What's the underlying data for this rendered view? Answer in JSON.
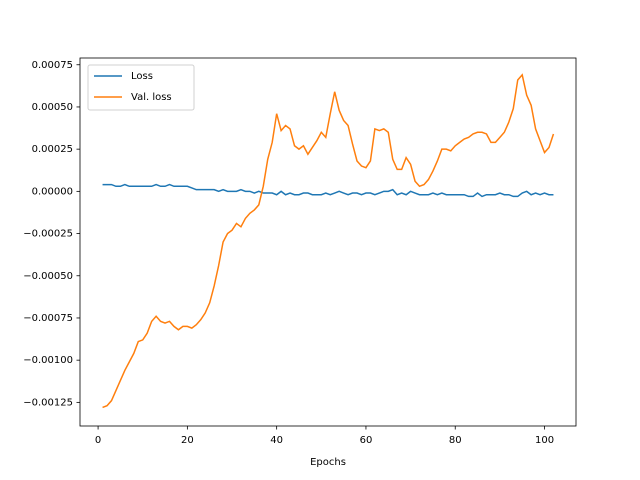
{
  "chart_data": {
    "type": "line",
    "x_label": "Epochs",
    "x": [
      1,
      2,
      3,
      4,
      5,
      6,
      7,
      8,
      9,
      10,
      11,
      12,
      13,
      14,
      15,
      16,
      17,
      18,
      19,
      20,
      21,
      22,
      23,
      24,
      25,
      26,
      27,
      28,
      29,
      30,
      31,
      32,
      33,
      34,
      35,
      36,
      37,
      38,
      39,
      40,
      41,
      42,
      43,
      44,
      45,
      46,
      47,
      48,
      49,
      50,
      51,
      52,
      53,
      54,
      55,
      56,
      57,
      58,
      59,
      60,
      61,
      62,
      63,
      64,
      65,
      66,
      67,
      68,
      69,
      70,
      71,
      72,
      73,
      74,
      75,
      76,
      77,
      78,
      79,
      80,
      81,
      82,
      83,
      84,
      85,
      86,
      87,
      88,
      89,
      90,
      91,
      92,
      93,
      94,
      95,
      96,
      97,
      98,
      99,
      100,
      101,
      102
    ],
    "series": [
      {
        "name": "Loss",
        "color": "#1f77b4",
        "values": [
          4e-05,
          4e-05,
          4e-05,
          3e-05,
          3e-05,
          4e-05,
          3e-05,
          3e-05,
          3e-05,
          3e-05,
          3e-05,
          3e-05,
          4e-05,
          3e-05,
          3e-05,
          4e-05,
          3e-05,
          3e-05,
          3e-05,
          3e-05,
          2e-05,
          1e-05,
          1e-05,
          1e-05,
          1e-05,
          1e-05,
          0,
          1e-05,
          0,
          0,
          0,
          1e-05,
          0,
          0,
          -1e-05,
          0,
          -1e-05,
          -1e-05,
          -1e-05,
          -2e-05,
          0,
          -2e-05,
          -1e-05,
          -2e-05,
          -2e-05,
          -1e-05,
          -1e-05,
          -2e-05,
          -2e-05,
          -2e-05,
          -1e-05,
          -2e-05,
          -1e-05,
          0,
          -1e-05,
          -2e-05,
          -1e-05,
          -1e-05,
          -2e-05,
          -1e-05,
          -1e-05,
          -2e-05,
          -1e-05,
          0,
          0,
          1e-05,
          -2e-05,
          -1e-05,
          -2e-05,
          0,
          -1e-05,
          -2e-05,
          -2e-05,
          -2e-05,
          -1e-05,
          -2e-05,
          -1e-05,
          -2e-05,
          -2e-05,
          -2e-05,
          -2e-05,
          -2e-05,
          -3e-05,
          -3e-05,
          -1e-05,
          -3e-05,
          -2e-05,
          -2e-05,
          -2e-05,
          -1e-05,
          -2e-05,
          -2e-05,
          -3e-05,
          -3e-05,
          -1e-05,
          0,
          -2e-05,
          -1e-05,
          -2e-05,
          -1e-05,
          -2e-05,
          -2e-05
        ]
      },
      {
        "name": "Val. loss",
        "color": "#ff7f0e",
        "values": [
          -0.00128,
          -0.00127,
          -0.00124,
          -0.00118,
          -0.00112,
          -0.00106,
          -0.00101,
          -0.00096,
          -0.00089,
          -0.00088,
          -0.00084,
          -0.00077,
          -0.00074,
          -0.00077,
          -0.00078,
          -0.00077,
          -0.0008,
          -0.00082,
          -0.0008,
          -0.0008,
          -0.00081,
          -0.00079,
          -0.00076,
          -0.00072,
          -0.00066,
          -0.00056,
          -0.00044,
          -0.0003,
          -0.00025,
          -0.00023,
          -0.00019,
          -0.00021,
          -0.00016,
          -0.00013,
          -0.00011,
          -8e-05,
          3e-05,
          0.00019,
          0.00029,
          0.00046,
          0.00036,
          0.00039,
          0.00037,
          0.00027,
          0.00025,
          0.00027,
          0.00022,
          0.00026,
          0.0003,
          0.00035,
          0.00032,
          0.00046,
          0.00059,
          0.00048,
          0.00042,
          0.00039,
          0.00028,
          0.00018,
          0.00015,
          0.00014,
          0.00018,
          0.00037,
          0.00036,
          0.00037,
          0.00035,
          0.00019,
          0.00013,
          0.00013,
          0.0002,
          0.00016,
          6e-05,
          3e-05,
          4e-05,
          7e-05,
          0.00012,
          0.00018,
          0.00025,
          0.00025,
          0.00024,
          0.00027,
          0.00029,
          0.00031,
          0.00032,
          0.00034,
          0.00035,
          0.00035,
          0.00034,
          0.00029,
          0.00029,
          0.00032,
          0.00035,
          0.00041,
          0.00049,
          0.00066,
          0.00069,
          0.00057,
          0.00051,
          0.00037,
          0.0003,
          0.00023,
          0.00026,
          0.00034
        ]
      }
    ],
    "xlim": [
      -4.05,
      107.05
    ],
    "xticks": [
      0,
      20,
      40,
      60,
      80,
      100
    ],
    "ylim": [
      -0.00139,
      0.00079
    ],
    "yticks": [
      {
        "value": -0.00125,
        "label": "−0.00125"
      },
      {
        "value": -0.001,
        "label": "−0.00100"
      },
      {
        "value": -0.00075,
        "label": "−0.00075"
      },
      {
        "value": -0.0005,
        "label": "−0.00050"
      },
      {
        "value": -0.00025,
        "label": "−0.00025"
      },
      {
        "value": 0,
        "label": "0.00000"
      },
      {
        "value": 0.00025,
        "label": "0.00025"
      },
      {
        "value": 0.0005,
        "label": "0.00050"
      },
      {
        "value": 0.00075,
        "label": "0.00075"
      }
    ],
    "legend": "upper left",
    "grid": false
  }
}
